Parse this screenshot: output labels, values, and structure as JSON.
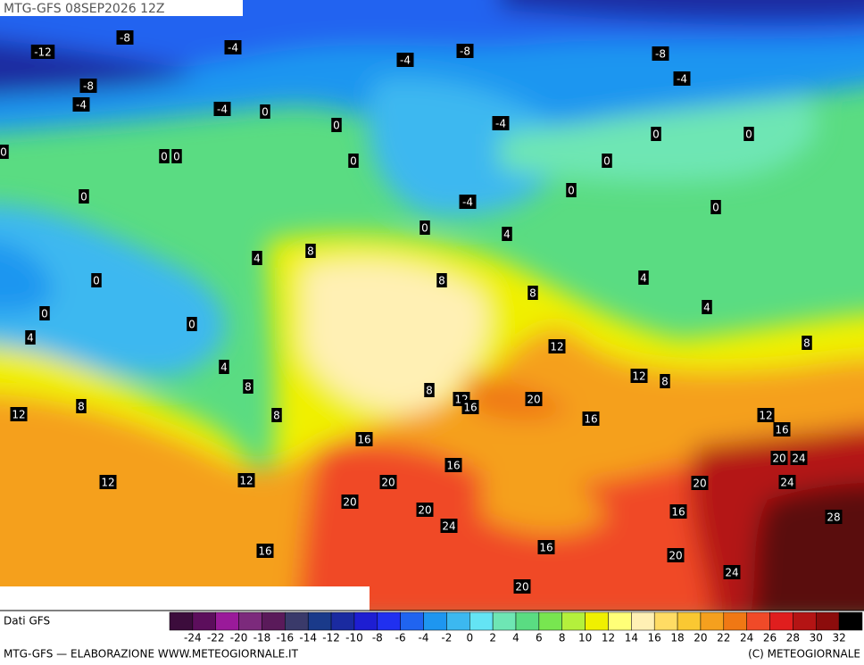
{
  "header": {
    "title": "MTG-GFS 08SEP2026 12Z"
  },
  "map": {
    "labels": [
      -8,
      -12,
      -4,
      -4,
      -8,
      -8,
      -4,
      -8,
      -4,
      -4,
      0,
      0,
      -4,
      0,
      0,
      0,
      0,
      0,
      0,
      0,
      0,
      0,
      -4,
      0,
      0,
      4,
      8,
      4,
      0,
      8,
      8,
      4,
      4,
      0,
      0,
      4,
      12,
      8,
      4,
      12,
      8,
      8,
      8,
      12,
      20,
      16,
      8,
      12,
      8,
      16,
      12,
      16,
      16,
      20,
      24,
      16,
      12,
      12,
      20,
      20,
      24,
      20,
      20,
      16,
      28,
      24,
      16,
      16,
      20,
      24,
      20
    ]
  },
  "legend": {
    "source": "Dati GFS",
    "ticks": [
      -24,
      -22,
      -20,
      -18,
      -16,
      -14,
      -12,
      -10,
      -8,
      -6,
      -4,
      -2,
      0,
      2,
      4,
      6,
      8,
      10,
      12,
      14,
      16,
      18,
      20,
      22,
      24,
      26,
      28,
      30,
      32
    ],
    "colors": [
      "#3c0c3c",
      "#5c0e5c",
      "#9a1a9a",
      "#7c2a7c",
      "#5a1a5a",
      "#3a3a6a",
      "#1a3a8a",
      "#1a2aa0",
      "#1e1ed2",
      "#2030f0",
      "#2064f0",
      "#1e96f0",
      "#3cb8f0",
      "#64e4f4",
      "#6ee6b4",
      "#5adc82",
      "#78e650",
      "#b4f03c",
      "#f0f000",
      "#ffff78",
      "#fff0b4",
      "#ffdc64",
      "#fac832",
      "#f5a01e",
      "#f07814",
      "#f04a28",
      "#e01e1e",
      "#b41414",
      "#8c0c0c",
      "#000000"
    ]
  },
  "footer": {
    "left": "MTG-GFS — ELABORAZIONE WWW.METEOGIORNALE.IT",
    "right": "(C) METEOGIORNALE"
  }
}
